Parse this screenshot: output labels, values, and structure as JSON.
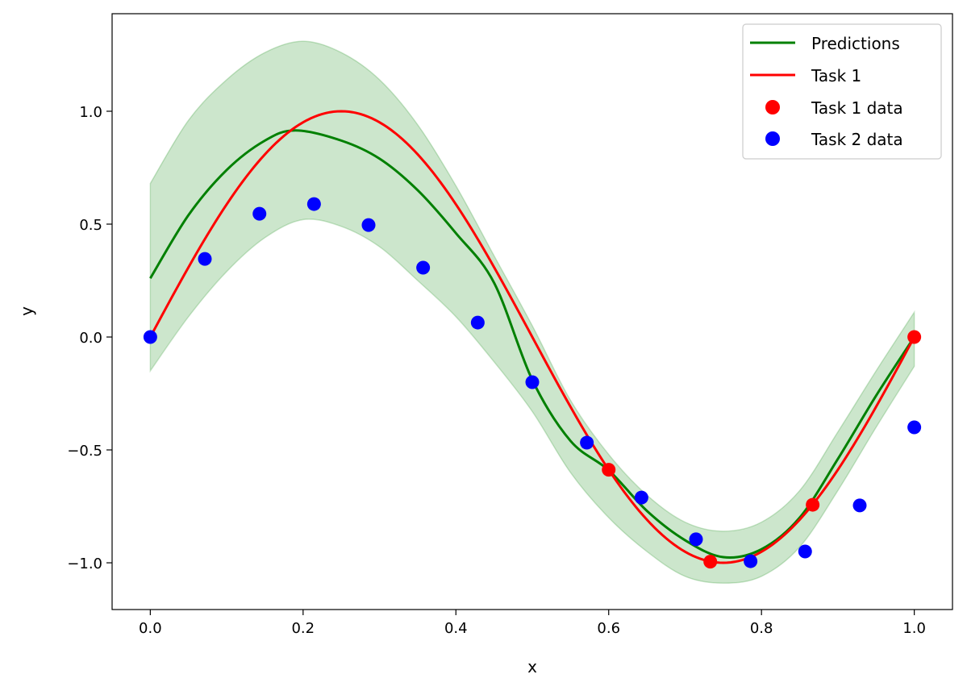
{
  "chart_data": {
    "type": "line",
    "title": "",
    "xlabel": "x",
    "ylabel": "y",
    "xlim": [
      -0.05,
      1.05
    ],
    "ylim": [
      -1.207,
      1.432
    ],
    "grid": false,
    "legend_placement": "top-right",
    "x_ticks": [
      0.0,
      0.2,
      0.4,
      0.6,
      0.8,
      1.0
    ],
    "x_tick_labels": [
      "0.0",
      "0.2",
      "0.4",
      "0.6",
      "0.8",
      "1.0"
    ],
    "y_ticks": [
      -1.0,
      -0.5,
      0.0,
      0.5,
      1.0
    ],
    "y_tick_labels": [
      "−1.0",
      "−0.5",
      "0.0",
      "0.5",
      "1.0"
    ],
    "legend": [
      "Predictions",
      "Task 1",
      "Task 1 data",
      "Task 2 data"
    ],
    "colors": {
      "predictions": "#008000",
      "band": "#008000",
      "task1": "#ff0000",
      "task2": "#0000ff"
    },
    "predictions": {
      "name": "Predictions",
      "x": [
        0,
        0.05,
        0.1,
        0.15,
        0.19,
        0.25,
        0.3,
        0.35,
        0.4,
        0.45,
        0.5,
        0.55,
        0.6,
        0.65,
        0.7,
        0.75,
        0.8,
        0.85,
        0.9,
        0.95,
        1.0
      ],
      "y": [
        0.26,
        0.54,
        0.74,
        0.87,
        0.915,
        0.87,
        0.79,
        0.65,
        0.46,
        0.24,
        -0.19,
        -0.46,
        -0.59,
        -0.77,
        -0.9,
        -0.975,
        -0.94,
        -0.8,
        -0.54,
        -0.26,
        0.0
      ]
    },
    "confidence_band": {
      "x": [
        0,
        0.05,
        0.1,
        0.15,
        0.2,
        0.25,
        0.3,
        0.35,
        0.4,
        0.45,
        0.5,
        0.55,
        0.6,
        0.65,
        0.7,
        0.75,
        0.8,
        0.85,
        0.9,
        0.95,
        1.0
      ],
      "upper": [
        0.68,
        0.96,
        1.14,
        1.26,
        1.31,
        1.26,
        1.14,
        0.94,
        0.67,
        0.36,
        0.05,
        -0.28,
        -0.52,
        -0.7,
        -0.82,
        -0.86,
        -0.82,
        -0.68,
        -0.42,
        -0.15,
        0.11
      ],
      "lower": [
        -0.15,
        0.09,
        0.29,
        0.44,
        0.52,
        0.49,
        0.4,
        0.25,
        0.09,
        -0.11,
        -0.33,
        -0.6,
        -0.8,
        -0.95,
        -1.06,
        -1.09,
        -1.06,
        -0.93,
        -0.68,
        -0.4,
        -0.13
      ]
    },
    "task1_curve": {
      "name": "Task 1",
      "function": "sin(2*pi*x)",
      "x_range": [
        0,
        1
      ]
    },
    "task1_data": {
      "name": "Task 1 data",
      "x": [
        0.6,
        0.733,
        0.867,
        1.0
      ],
      "y": [
        -0.588,
        -0.995,
        -0.743,
        0.0
      ]
    },
    "task2_data": {
      "name": "Task 2 data",
      "x": [
        0,
        0.0714,
        0.1429,
        0.2143,
        0.2857,
        0.3571,
        0.4286,
        0.5,
        0.5714,
        0.6429,
        0.7143,
        0.7857,
        0.8571,
        0.9286,
        1.0
      ],
      "y": [
        0,
        0.346,
        0.546,
        0.589,
        0.496,
        0.307,
        0.064,
        -0.2,
        -0.468,
        -0.711,
        -0.896,
        -0.993,
        -0.95,
        -0.746,
        -0.4
      ]
    }
  }
}
